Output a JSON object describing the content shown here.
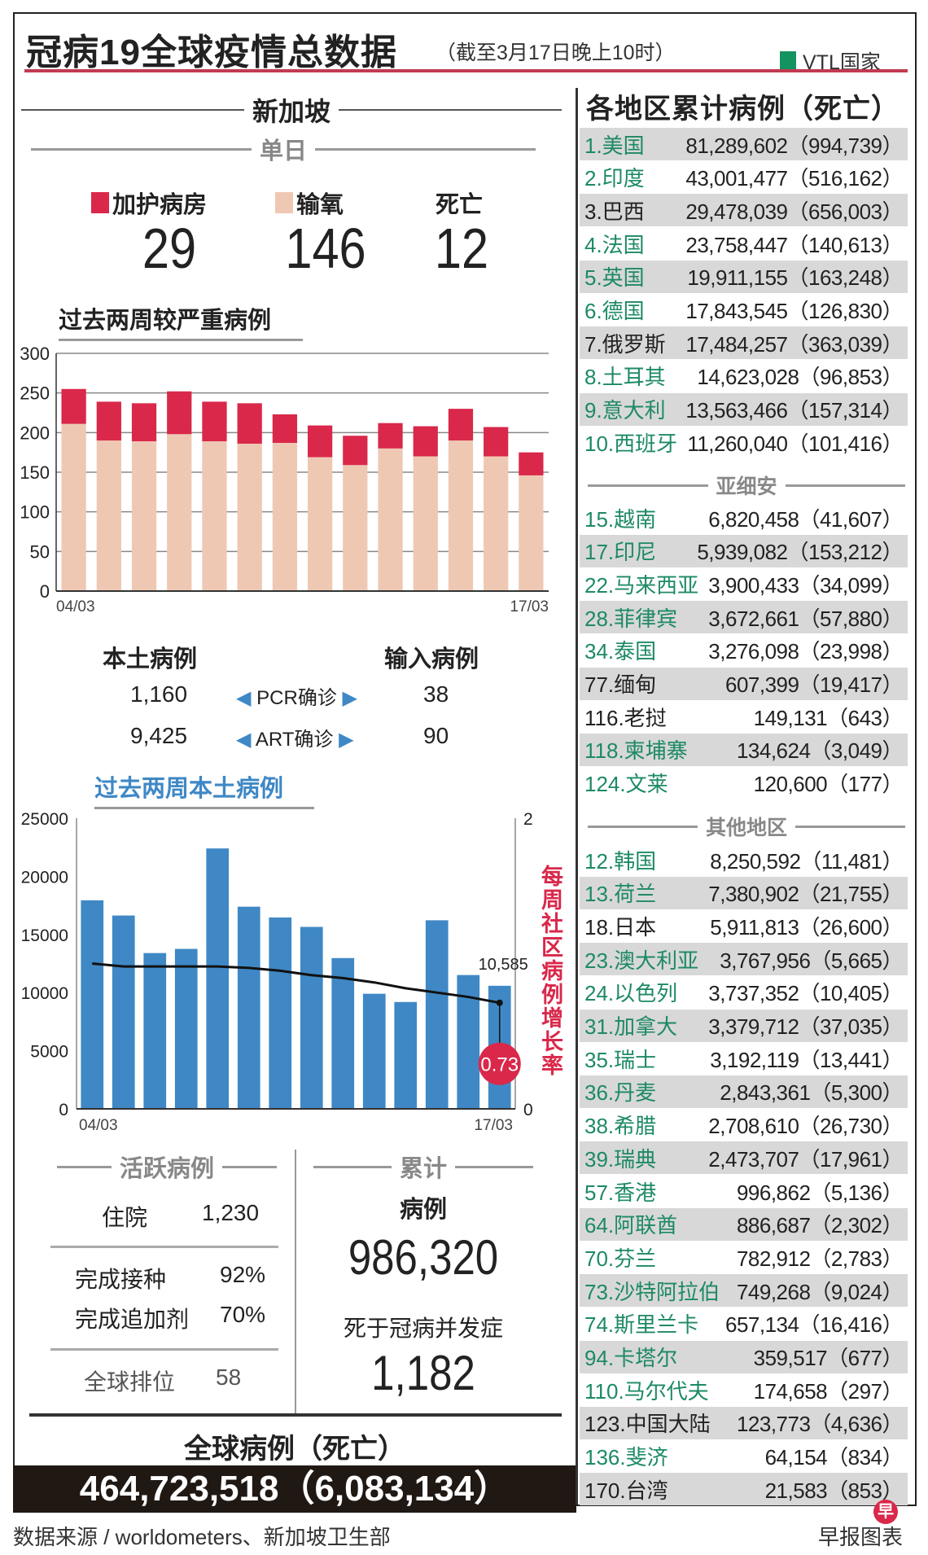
{
  "header": {
    "title": "冠病19全球疫情总数据",
    "subtitle": "（截至3月17日晚上10时）",
    "vtl_legend": "VTL国家",
    "vtl_color": "#13935f"
  },
  "singapore": {
    "title": "新加坡",
    "daily": "单日",
    "icu": {
      "label": "加护病房",
      "value": "29",
      "color": "#d9284a"
    },
    "oxygen": {
      "label": "输氧",
      "value": "146",
      "color": "#efc8b4"
    },
    "deaths": {
      "label": "死亡",
      "value": "12"
    },
    "local_label": "本土病例",
    "imported_label": "输入病例",
    "pcr": {
      "label": "PCR确诊",
      "local": "1,160",
      "imported": "38"
    },
    "art": {
      "label": "ART确诊",
      "local": "9,425",
      "imported": "90"
    },
    "active": {
      "title": "活跃病例",
      "hosp_label": "住院",
      "hosp_value": "1,230",
      "vax_label": "完成接种",
      "vax_value": "92%",
      "booster_label": "完成追加剂",
      "booster_value": "70%",
      "rank_label": "全球排位",
      "rank_value": "58"
    },
    "cumulative": {
      "title": "累计",
      "cases_label": "病例",
      "cases_value": "986,320",
      "deaths_label": "死于冠病并发症",
      "deaths_value": "1,182"
    }
  },
  "global": {
    "label": "全球病例（死亡）",
    "value": "464,723,518（6,083,134）"
  },
  "footer": {
    "source": "数据来源 / worldometers、新加坡卫生部",
    "credit": "早报图表",
    "logo_text": "早"
  },
  "chart_data": [
    {
      "type": "bar",
      "stacked": true,
      "title": "过去两周较严重病例",
      "categories": [
        "04/03",
        "05/03",
        "06/03",
        "07/03",
        "08/03",
        "09/03",
        "10/03",
        "11/03",
        "12/03",
        "13/03",
        "14/03",
        "15/03",
        "16/03",
        "17/03"
      ],
      "x_tick_labels": [
        "04/03",
        "17/03"
      ],
      "ylim": [
        0,
        300
      ],
      "yticks": [
        0,
        50,
        100,
        150,
        200,
        250,
        300
      ],
      "grid": true,
      "series": [
        {
          "name": "输氧",
          "color": "#efc8b4",
          "values": [
            211,
            190,
            189,
            198,
            189,
            186,
            187,
            169,
            159,
            180,
            170,
            190,
            170,
            146
          ]
        },
        {
          "name": "加护病房",
          "color": "#d9284a",
          "values": [
            44,
            49,
            48,
            54,
            50,
            51,
            36,
            40,
            37,
            32,
            38,
            40,
            37,
            29
          ]
        }
      ]
    },
    {
      "type": "bar",
      "title": "过去两周本土病例",
      "categories": [
        "04/03",
        "05/03",
        "06/03",
        "07/03",
        "08/03",
        "09/03",
        "10/03",
        "11/03",
        "12/03",
        "13/03",
        "14/03",
        "15/03",
        "16/03",
        "17/03"
      ],
      "x_tick_labels": [
        "04/03",
        "17/03"
      ],
      "ylim": [
        0,
        25000
      ],
      "yticks": [
        0,
        5000,
        10000,
        15000,
        20000,
        25000
      ],
      "grid": false,
      "bar_color": "#3f88c5",
      "values": [
        17940,
        16630,
        13400,
        13760,
        22400,
        17390,
        16460,
        15650,
        12970,
        9900,
        9190,
        16220,
        11510,
        10585
      ],
      "last_bar_label": "10,585",
      "line": {
        "axis": "right",
        "ylim": [
          0,
          2
        ],
        "yticks": [
          0,
          2
        ],
        "label": "每周社区病例增长率",
        "color": "#d9284a",
        "values": [
          1.0,
          0.98,
          0.98,
          0.98,
          0.98,
          0.97,
          0.95,
          0.92,
          0.9,
          0.87,
          0.83,
          0.8,
          0.77,
          0.73
        ],
        "last_label": "0.73"
      }
    }
  ],
  "countries": {
    "title": "各地区累计病例（死亡）",
    "top": [
      {
        "name": "1.美国",
        "value": "81,289,602（994,739）",
        "vtl": true
      },
      {
        "name": "2.印度",
        "value": "43,001,477（516,162）",
        "vtl": true
      },
      {
        "name": "3.巴西",
        "value": "29,478,039（656,003）",
        "vtl": false
      },
      {
        "name": "4.法国",
        "value": "23,758,447（140,613）",
        "vtl": true
      },
      {
        "name": "5.英国",
        "value": "19,911,155（163,248）",
        "vtl": true
      },
      {
        "name": "6.德国",
        "value": "17,843,545（126,830）",
        "vtl": true
      },
      {
        "name": "7.俄罗斯",
        "value": "17,484,257（363,039）",
        "vtl": false
      },
      {
        "name": "8.土耳其",
        "value": "14,623,028（96,853）",
        "vtl": true
      },
      {
        "name": "9.意大利",
        "value": "13,563,466（157,314）",
        "vtl": true
      },
      {
        "name": "10.西班牙",
        "value": "11,260,040（101,416）",
        "vtl": true
      }
    ],
    "asean_title": "亚细安",
    "asean": [
      {
        "name": "15.越南",
        "value": "6,820,458（41,607）",
        "vtl": true
      },
      {
        "name": "17.印尼",
        "value": "5,939,082（153,212）",
        "vtl": true
      },
      {
        "name": "22.马来西亚",
        "value": "3,900,433（34,099）",
        "vtl": true
      },
      {
        "name": "28.菲律宾",
        "value": "3,672,661（57,880）",
        "vtl": true
      },
      {
        "name": "34.泰国",
        "value": "3,276,098（23,998）",
        "vtl": true
      },
      {
        "name": "77.缅甸",
        "value": "607,399（19,417）",
        "vtl": false
      },
      {
        "name": "116.老挝",
        "value": "149,131（643）",
        "vtl": false
      },
      {
        "name": "118.柬埔寨",
        "value": "134,624（3,049）",
        "vtl": true
      },
      {
        "name": "124.文莱",
        "value": "120,600（177）",
        "vtl": true
      }
    ],
    "other_title": "其他地区",
    "other": [
      {
        "name": "12.韩国",
        "value": "8,250,592（11,481）",
        "vtl": true
      },
      {
        "name": "13.荷兰",
        "value": "7,380,902（21,755）",
        "vtl": true
      },
      {
        "name": "18.日本",
        "value": "5,911,813（26,600）",
        "vtl": false
      },
      {
        "name": "23.澳大利亚",
        "value": "3,767,956（5,665）",
        "vtl": true
      },
      {
        "name": "24.以色列",
        "value": "3,737,352（10,405）",
        "vtl": true
      },
      {
        "name": "31.加拿大",
        "value": "3,379,712（37,035）",
        "vtl": true
      },
      {
        "name": "35.瑞士",
        "value": "3,192,119（13,441）",
        "vtl": true
      },
      {
        "name": "36.丹麦",
        "value": "2,843,361（5,300）",
        "vtl": true
      },
      {
        "name": "38.希腊",
        "value": "2,708,610（26,730）",
        "vtl": true
      },
      {
        "name": "39.瑞典",
        "value": "2,473,707（17,961）",
        "vtl": true
      },
      {
        "name": "57.香港",
        "value": "996,862（5,136）",
        "vtl": true
      },
      {
        "name": "64.阿联酋",
        "value": "886,687（2,302）",
        "vtl": true
      },
      {
        "name": "70.芬兰",
        "value": "782,912（2,783）",
        "vtl": true
      },
      {
        "name": "73.沙特阿拉伯",
        "value": "749,268（9,024）",
        "vtl": true
      },
      {
        "name": "74.斯里兰卡",
        "value": "657,134（16,416）",
        "vtl": true
      },
      {
        "name": "94.卡塔尔",
        "value": "359,517（677）",
        "vtl": true
      },
      {
        "name": "110.马尔代夫",
        "value": "174,658（297）",
        "vtl": true
      },
      {
        "name": "123.中国大陆",
        "value": "123,773（4,636）",
        "vtl": false
      },
      {
        "name": "136.斐济",
        "value": "64,154（834）",
        "vtl": true
      },
      {
        "name": "170.台湾",
        "value": "21,583（853）",
        "vtl": false
      }
    ]
  }
}
